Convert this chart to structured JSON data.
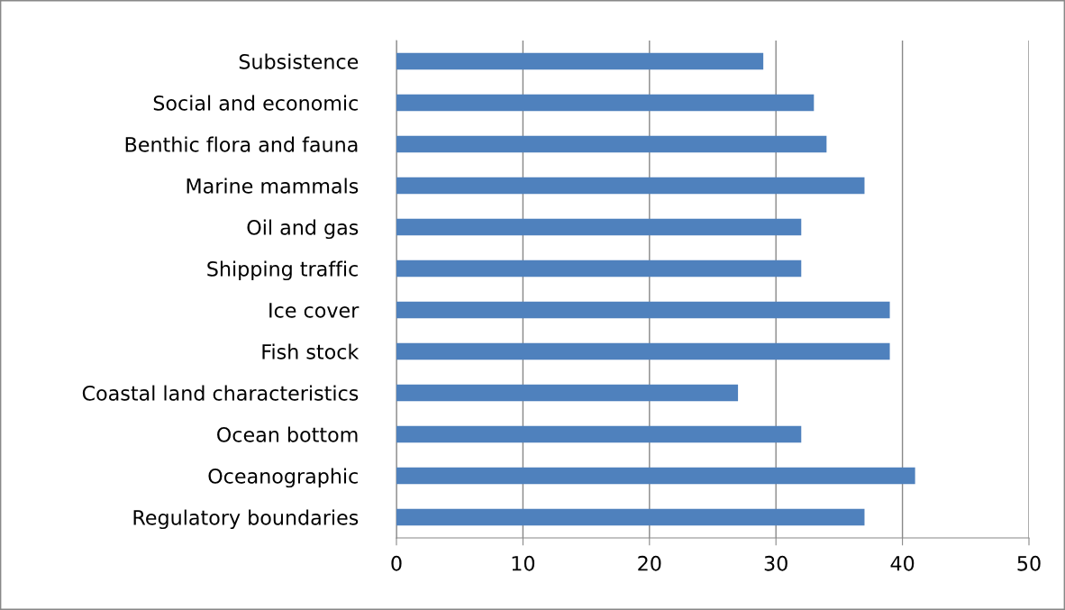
{
  "chart_data": {
    "type": "bar",
    "orientation": "horizontal",
    "categories": [
      "Subsistence",
      "Social and economic",
      "Benthic flora and fauna",
      "Marine mammals",
      "Oil and gas",
      "Shipping traffic",
      "Ice cover",
      "Fish stock",
      "Coastal land characteristics",
      "Ocean bottom",
      "Oceanographic",
      "Regulatory boundaries"
    ],
    "values": [
      29,
      33,
      34,
      37,
      32,
      32,
      39,
      39,
      27,
      32,
      41,
      37
    ],
    "color": "#4f81bd",
    "xlim": [
      0,
      50
    ],
    "xticks": [
      0,
      10,
      20,
      30,
      40,
      50
    ],
    "grid": "x",
    "legend": false
  }
}
